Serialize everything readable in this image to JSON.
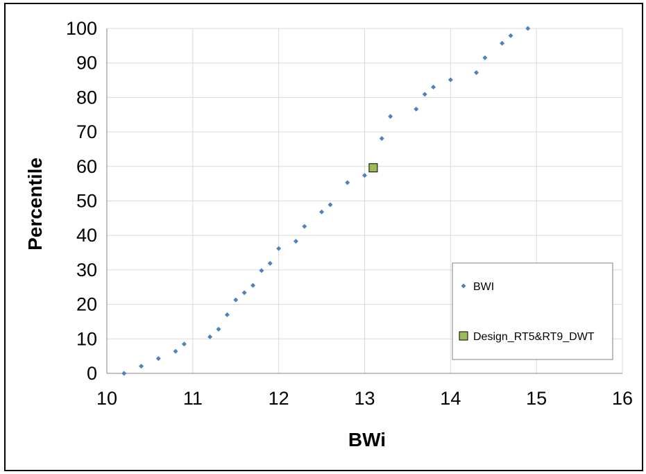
{
  "chart_data": {
    "type": "scatter",
    "title": "",
    "xlabel": "BWi",
    "ylabel": "Percentile",
    "xlim": [
      10,
      16
    ],
    "ylim": [
      0,
      100
    ],
    "xticks": [
      10,
      11,
      12,
      13,
      14,
      15,
      16
    ],
    "yticks": [
      0,
      10,
      20,
      30,
      40,
      50,
      60,
      70,
      80,
      90,
      100
    ],
    "grid": true,
    "legend_position": "right",
    "series": [
      {
        "name": "BWI",
        "marker": "diamond",
        "color": "#4f81bd",
        "points": [
          [
            10.2,
            0
          ],
          [
            10.4,
            2.1
          ],
          [
            10.6,
            4.3
          ],
          [
            10.8,
            6.4
          ],
          [
            10.9,
            8.5
          ],
          [
            11.2,
            10.6
          ],
          [
            11.3,
            12.8
          ],
          [
            11.4,
            17.0
          ],
          [
            11.5,
            21.3
          ],
          [
            11.6,
            23.4
          ],
          [
            11.7,
            25.5
          ],
          [
            11.8,
            29.8
          ],
          [
            11.9,
            31.9
          ],
          [
            12.0,
            36.2
          ],
          [
            12.2,
            38.3
          ],
          [
            12.3,
            42.6
          ],
          [
            12.5,
            46.8
          ],
          [
            12.6,
            48.9
          ],
          [
            12.8,
            55.3
          ],
          [
            13.0,
            57.4
          ],
          [
            13.2,
            68.1
          ],
          [
            13.3,
            74.5
          ],
          [
            13.6,
            76.6
          ],
          [
            13.7,
            80.9
          ],
          [
            13.8,
            83.0
          ],
          [
            14.0,
            85.1
          ],
          [
            14.3,
            87.2
          ],
          [
            14.4,
            91.5
          ],
          [
            14.6,
            95.7
          ],
          [
            14.7,
            97.9
          ],
          [
            14.9,
            100
          ]
        ]
      },
      {
        "name": "Design_RT5&RT9_DWT",
        "marker": "square",
        "color": "#9bbb59",
        "stroke": "#000000",
        "points": [
          [
            13.1,
            59.6
          ]
        ]
      }
    ]
  }
}
